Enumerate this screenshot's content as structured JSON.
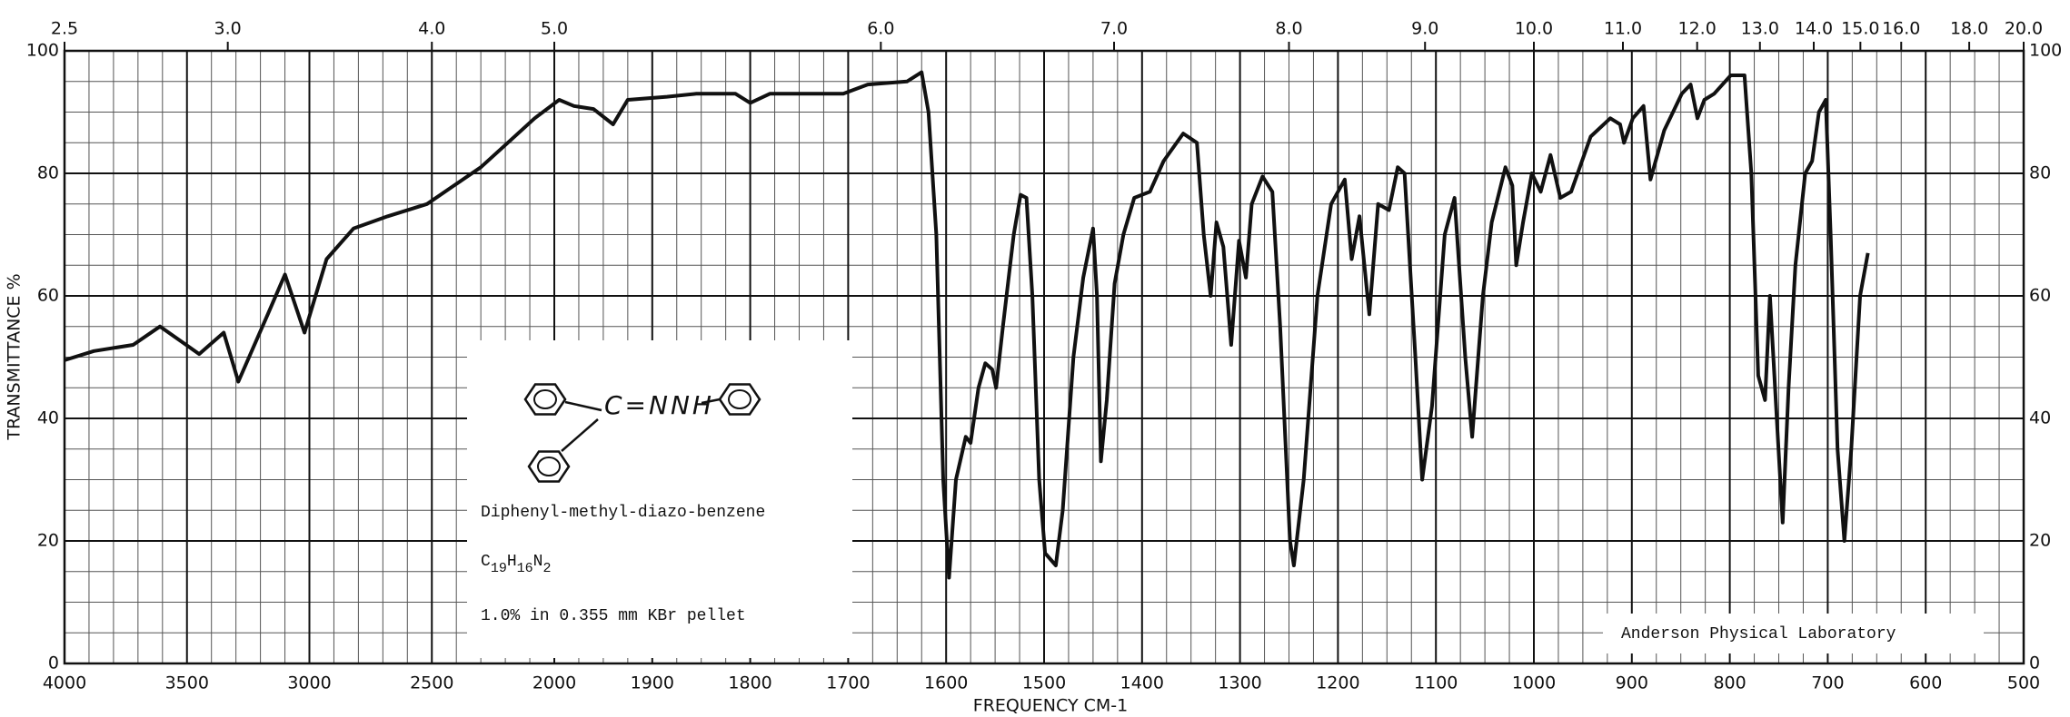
{
  "chart_data": {
    "type": "line",
    "x_label": "FREQUENCY  CM-1",
    "y_label": "TRANSMITTANCE %",
    "x2_label_ticks": [
      2.5,
      {
        "value": 3,
        "label": "3.0"
      },
      {
        "value": 4,
        "label": "4.0"
      },
      {
        "value": 5,
        "label": "5.0"
      },
      {
        "value": 6,
        "label": "6.0"
      },
      {
        "value": 7,
        "label": "7.0"
      },
      {
        "value": 8,
        "label": "8.0"
      },
      {
        "value": 9,
        "label": "9.0"
      },
      {
        "value": 10,
        "label": "10.0"
      },
      {
        "value": 11,
        "label": "11.0"
      },
      {
        "value": 12,
        "label": "12.0"
      },
      {
        "value": 13,
        "label": "13.0"
      },
      {
        "value": 14,
        "label": "14.0"
      },
      {
        "value": 15,
        "label": "15.0"
      },
      {
        "value": 16,
        "label": "16.0"
      },
      {
        "value": 18,
        "label": "18.0"
      },
      {
        "value": 20,
        "label": "20.0"
      }
    ],
    "xlim": [
      4000,
      500
    ],
    "xticks": [
      4000,
      3500,
      3000,
      2500,
      2000,
      1900,
      1800,
      1700,
      1600,
      1500,
      1400,
      1300,
      1200,
      1100,
      1000,
      900,
      800,
      700,
      600,
      500
    ],
    "ylim": [
      0,
      100
    ],
    "yticks": [
      0,
      20,
      40,
      60,
      80,
      100
    ],
    "grid": true,
    "color": "#111111",
    "x": [
      4000,
      3880,
      3720,
      3610,
      3450,
      3350,
      3290,
      3170,
      3100,
      3020,
      2930,
      2820,
      2680,
      2520,
      2410,
      2300,
      2190,
      2080,
      1995,
      1980,
      1960,
      1940,
      1925,
      1885,
      1855,
      1815,
      1800,
      1780,
      1745,
      1705,
      1680,
      1640,
      1625,
      1618,
      1610,
      1603,
      1597,
      1590,
      1580,
      1575,
      1567,
      1560,
      1553,
      1549,
      1542,
      1531,
      1524,
      1518,
      1512,
      1505,
      1499,
      1488,
      1481,
      1470,
      1460,
      1450,
      1446,
      1442,
      1436,
      1428,
      1419,
      1408,
      1392,
      1378,
      1358,
      1344,
      1337,
      1330,
      1324,
      1317,
      1309,
      1301,
      1294,
      1288,
      1277,
      1267,
      1259,
      1249,
      1245,
      1235,
      1221,
      1207,
      1193,
      1186,
      1178,
      1168,
      1159,
      1148,
      1139,
      1132,
      1121,
      1114,
      1104,
      1091,
      1081,
      1070,
      1063,
      1052,
      1043,
      1029,
      1022,
      1018,
      1011,
      1002,
      993,
      983,
      973,
      962,
      942,
      922,
      912,
      908,
      899,
      888,
      881,
      867,
      849,
      840,
      833,
      826,
      816,
      799,
      785,
      778,
      771,
      764,
      759,
      752,
      746,
      740,
      733,
      723,
      716,
      709,
      702,
      697,
      690,
      683,
      676,
      667,
      659
    ],
    "values": [
      49.5,
      51,
      52,
      55,
      50.5,
      54,
      46,
      57,
      63.5,
      54,
      66,
      71,
      73,
      75,
      78,
      81,
      85,
      89,
      92,
      91,
      90.5,
      88,
      92,
      92.5,
      93,
      93,
      91.5,
      93,
      93,
      93,
      94.5,
      95,
      96.5,
      90,
      70,
      30,
      14,
      30,
      37,
      36,
      45,
      49,
      48,
      45,
      55,
      70,
      76.5,
      76,
      60,
      30,
      18,
      16,
      25,
      50,
      63,
      71,
      60,
      33,
      43,
      62,
      70,
      76,
      77,
      82,
      86.5,
      85,
      70,
      60,
      72,
      68,
      52,
      69,
      63,
      75,
      79.5,
      77,
      55,
      20,
      16,
      30,
      60,
      75,
      79,
      66,
      73,
      57,
      75,
      74,
      81,
      80,
      50,
      30,
      42,
      70,
      76,
      50,
      37,
      60,
      72,
      81,
      78,
      65,
      72,
      80,
      77,
      83,
      76,
      77,
      86,
      89,
      88,
      85,
      89,
      91,
      79,
      87,
      93,
      94.5,
      89,
      92,
      93,
      96,
      96,
      80,
      47,
      43,
      60,
      40,
      23,
      45,
      65,
      80,
      82,
      90,
      92,
      70,
      35,
      20,
      35,
      60,
      67
    ]
  },
  "annotation": {
    "structure_group": "C=NNH",
    "name": "Diphenyl-methyl-diazo-benzene",
    "formula": "C19H16N2",
    "conditions": "1.0% in 0.355 mm   KBr pellet",
    "lab": "Anderson Physical Laboratory"
  }
}
